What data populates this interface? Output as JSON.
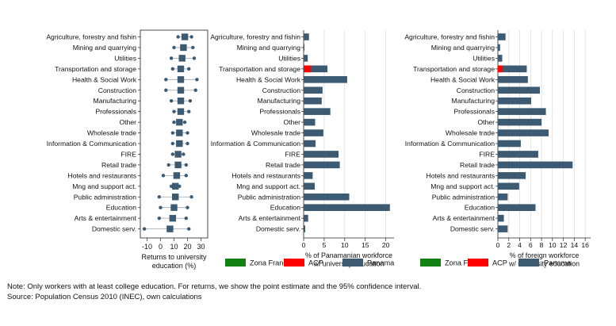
{
  "panel1": {
    "type": "scatter",
    "subtitle": "",
    "xlabel": "Returns to university education (%)",
    "xlabel_lines": [
      "Returns to university",
      "education (%)"
    ],
    "xticks": [
      "-10",
      "0",
      "10",
      "20",
      "30"
    ],
    "xlim": [
      -15,
      35
    ]
  },
  "panel2": {
    "type": "bar",
    "xlabel_lines": [
      "% of Panamanian workforce",
      "w/ university education"
    ],
    "xticks": [
      "0",
      "5",
      "10",
      "15",
      "20"
    ],
    "xlim": [
      0,
      22
    ],
    "legend": {
      "items": [
        "Zona Franca",
        "ACP",
        "Panama"
      ]
    }
  },
  "panel3": {
    "type": "bar",
    "xlabel_lines": [
      "% of foreign workforce",
      "w/ university education"
    ],
    "xticks": [
      "0",
      "2",
      "4",
      "6",
      "8",
      "10",
      "12",
      "14",
      "16"
    ],
    "xlim": [
      0,
      17
    ],
    "legend": {
      "items": [
        "Zona Franca",
        "ACP",
        "Panama"
      ]
    }
  },
  "colors": {
    "panama": "#3d5a73",
    "acp": "#ff0000",
    "zona_franca": "#138013",
    "dot": "#3d5a73",
    "grid": "#d8d8d8"
  },
  "chart_data": [
    {
      "type": "scatter",
      "title": "",
      "xlabel": "Returns to university education (%)",
      "categories": [
        "Agriculture, forestry and fishin",
        "Mining and quarrying",
        "Utilities",
        "Transportation and storage",
        "Health & Social Work",
        "Construction",
        "Manufacturing",
        "Professionals",
        "Other",
        "Wholesale trade",
        "Information & Communication",
        "FIRE",
        "Retail trade",
        "Hotels and restaurants",
        "Mng and support act.",
        "Public administration",
        "Education",
        "Arts & entertainment",
        "Domestic serv."
      ],
      "estimate": [
        18,
        17,
        16,
        15,
        15,
        15,
        15,
        15,
        14,
        14,
        14,
        13,
        13,
        12,
        11,
        11,
        10,
        9,
        7
      ],
      "ci_low": [
        13,
        10,
        8,
        9,
        4,
        4,
        8,
        10,
        10,
        9,
        9,
        9,
        6,
        2,
        8,
        -1,
        0,
        -1,
        -12
      ],
      "ci_high": [
        23,
        24,
        25,
        21,
        27,
        26,
        22,
        21,
        18,
        20,
        20,
        17,
        19,
        19,
        14,
        23,
        20,
        19,
        21
      ],
      "xlim": [
        -15,
        35
      ]
    },
    {
      "type": "bar",
      "xlabel": "% of Panamanian workforce w/ university education",
      "categories": [
        "Agriculture, forestry and fishin",
        "Mining and quarrying",
        "Utilities",
        "Transportation and storage",
        "Health & Social Work",
        "Construction",
        "Manufacturing",
        "Professionals",
        "Other",
        "Wholesale trade",
        "Information & Communication",
        "FIRE",
        "Retail trade",
        "Hotels and restaurants",
        "Mng and support act.",
        "Public administration",
        "Education",
        "Arts & entertainment",
        "Domestic serv."
      ],
      "series": [
        {
          "name": "Panama",
          "values": [
            1.3,
            0.2,
            1.0,
            5.8,
            10.6,
            4.6,
            4.4,
            6.5,
            2.8,
            4.8,
            2.9,
            8.5,
            8.8,
            2.2,
            2.7,
            11.1,
            21.0,
            1.1,
            0.4
          ]
        },
        {
          "name": "ACP",
          "values": [
            0,
            0,
            0,
            1.8,
            0,
            0,
            0,
            0,
            0,
            0,
            0,
            0,
            0,
            0,
            0,
            0,
            0,
            0,
            0
          ]
        },
        {
          "name": "Zona Franca",
          "values": [
            0,
            0,
            0,
            0,
            0,
            0,
            0,
            0,
            0,
            0,
            0,
            0,
            0,
            0,
            0,
            0,
            0,
            0,
            0
          ]
        }
      ],
      "xlim": [
        0,
        22
      ]
    },
    {
      "type": "bar",
      "xlabel": "% of foreign workforce w/ university education",
      "categories": [
        "Agriculture, forestry and fishin",
        "Mining and quarrying",
        "Utilities",
        "Transportation and storage",
        "Health & Social Work",
        "Construction",
        "Manufacturing",
        "Professionals",
        "Other",
        "Wholesale trade",
        "Information & Communication",
        "FIRE",
        "Retail trade",
        "Hotels and restaurants",
        "Mng and support act.",
        "Public administration",
        "Education",
        "Arts & entertainment",
        "Domestic serv."
      ],
      "series": [
        {
          "name": "Panama",
          "values": [
            1.4,
            0.4,
            0.8,
            5.3,
            5.5,
            7.7,
            6.1,
            8.8,
            8.0,
            9.3,
            4.2,
            7.4,
            13.7,
            5.1,
            3.9,
            1.8,
            6.9,
            1.1,
            1.8
          ]
        },
        {
          "name": "ACP",
          "values": [
            0,
            0,
            0,
            0.9,
            0,
            0,
            0,
            0,
            0,
            0,
            0,
            0,
            0,
            0,
            0,
            0,
            0,
            0,
            0
          ]
        },
        {
          "name": "Zona Franca",
          "values": [
            0,
            0,
            0,
            0,
            0,
            0,
            0,
            0,
            0,
            0,
            0,
            0,
            0,
            0,
            0,
            0,
            0,
            0,
            0
          ]
        }
      ],
      "xlim": [
        0,
        17
      ]
    }
  ],
  "footer": {
    "note": "Note: Only workers with at least college education. For returns, we show the point estimate and the 95% confidence interval.",
    "source": "Source: Population Census 2010 (INEC), own calculations"
  }
}
